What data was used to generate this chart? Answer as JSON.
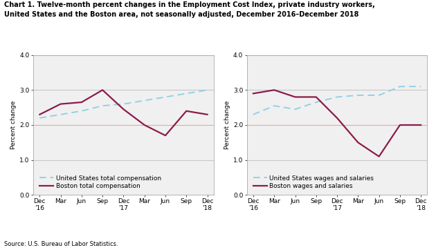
{
  "title_line1": "Chart 1. Twelve-month percent changes in the Employment Cost Index, private industry workers,",
  "title_line2": "United States and the Boston area, not seasonally adjusted, December 2016–December 2018",
  "ylabel": "Percent change",
  "source": "Source: U.S. Bureau of Labor Statistics.",
  "x_labels": [
    "Dec\n'16",
    "Mar",
    "Jun",
    "Sep",
    "Dec\n'17",
    "Mar",
    "Jun",
    "Sep",
    "Dec\n'18"
  ],
  "x_ticks": [
    0,
    1,
    2,
    3,
    4,
    5,
    6,
    7,
    8
  ],
  "ylim": [
    0.0,
    4.0
  ],
  "yticks": [
    0.0,
    1.0,
    2.0,
    3.0,
    4.0
  ],
  "left": {
    "us_total_comp": [
      2.2,
      2.3,
      2.4,
      2.55,
      2.6,
      2.7,
      2.8,
      2.9,
      3.0
    ],
    "boston_total_comp": [
      2.3,
      2.6,
      2.65,
      3.0,
      2.45,
      2.0,
      1.7,
      2.4,
      2.3
    ],
    "legend1": "United States total compensation",
    "legend2": "Boston total compensation"
  },
  "right": {
    "us_wages_salaries": [
      2.3,
      2.55,
      2.45,
      2.65,
      2.8,
      2.85,
      2.85,
      3.1,
      3.1
    ],
    "boston_wages_salaries": [
      2.9,
      3.0,
      2.8,
      2.8,
      2.2,
      1.5,
      1.1,
      2.0,
      2.0
    ],
    "legend1": "United States wages and salaries",
    "legend2": "Boston wages and salaries"
  },
  "us_color": "#92D0E8",
  "boston_color": "#8B1A4A",
  "hline_color": "#c8c8c8",
  "hline2_color": "#F4A0A0",
  "plot_bg_color": "#F0F0F0",
  "title_fontsize": 7.0,
  "axis_fontsize": 6.5,
  "legend_fontsize": 6.5
}
